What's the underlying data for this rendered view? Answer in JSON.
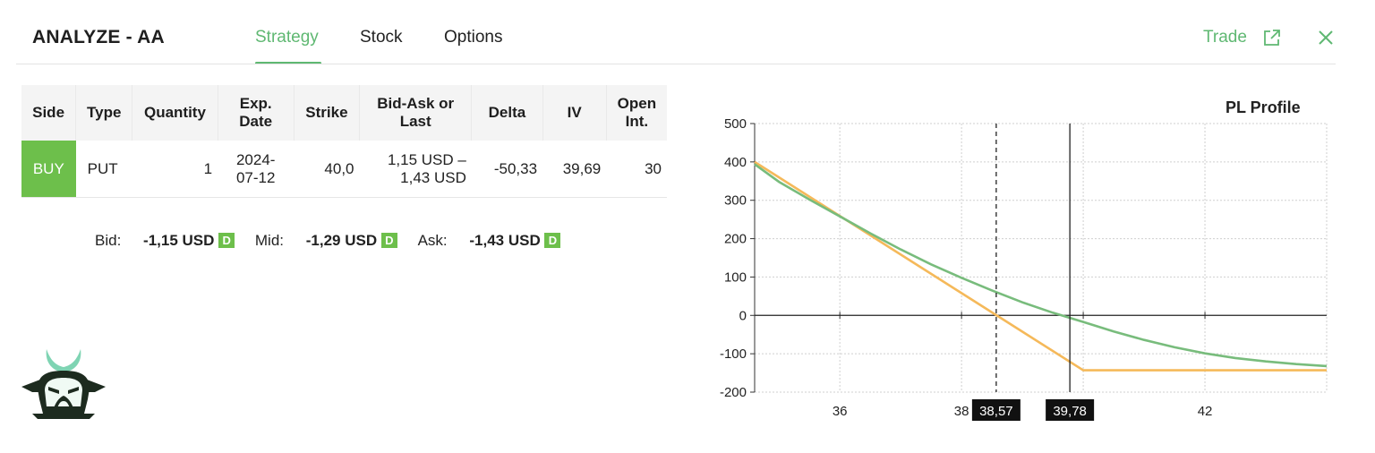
{
  "header": {
    "title": "ANALYZE - AA",
    "tabs": [
      {
        "label": "Strategy",
        "active": true
      },
      {
        "label": "Stock",
        "active": false
      },
      {
        "label": "Options",
        "active": false
      }
    ],
    "trade_label": "Trade",
    "accent_color": "#5fb872"
  },
  "table": {
    "columns": [
      [
        "Side"
      ],
      [
        "Type"
      ],
      [
        "Quantity"
      ],
      [
        "Exp.",
        "Date"
      ],
      [
        "Strike"
      ],
      [
        "Bid-Ask or",
        "Last"
      ],
      [
        "Delta"
      ],
      [
        "IV"
      ],
      [
        "Open",
        "Int."
      ]
    ],
    "rows": [
      {
        "side": "BUY",
        "type": "PUT",
        "quantity": "1",
        "exp_date": [
          "2024-",
          "07-12"
        ],
        "strike": "40,0",
        "bid_ask": [
          "1,15 USD –",
          "1,43 USD"
        ],
        "delta": "-50,33",
        "iv": "39,69",
        "open_int": "30"
      }
    ]
  },
  "prices": {
    "bid_label": "Bid:",
    "bid_value": "-1,15 USD",
    "mid_label": "Mid:",
    "mid_value": "-1,29 USD",
    "ask_label": "Ask:",
    "ask_value": "-1,43 USD",
    "badge": "D"
  },
  "chart_data": {
    "type": "line",
    "title": "PL Profile",
    "xlim": [
      34.6,
      44.0
    ],
    "ylim": [
      -200,
      500
    ],
    "y_ticks": [
      500,
      400,
      300,
      200,
      100,
      0,
      -100,
      -200
    ],
    "x_ticks": [
      36,
      38,
      40,
      42
    ],
    "x_tick_labels_shown": [
      "36",
      "38",
      "42"
    ],
    "markers": [
      {
        "x": 38.57,
        "label": "38,57",
        "style": "dashed"
      },
      {
        "x": 39.78,
        "label": "39,78",
        "style": "solid"
      }
    ],
    "series": [
      {
        "color": "#f5b95a",
        "x": [
          34.6,
          40.0,
          44.0
        ],
        "y": [
          400,
          -143,
          -143
        ]
      },
      {
        "color": "#78bc7c",
        "x": [
          34.6,
          35.0,
          35.5,
          36.0,
          36.5,
          37.0,
          37.5,
          38.0,
          38.5,
          39.0,
          39.5,
          40.0,
          40.5,
          41.0,
          41.5,
          42.0,
          42.5,
          43.0,
          43.5,
          44.0
        ],
        "y": [
          394,
          348,
          302,
          258,
          214,
          172,
          133,
          98,
          65,
          34,
          7,
          -17,
          -42,
          -64,
          -83,
          -99,
          -111,
          -120,
          -127,
          -132
        ]
      }
    ],
    "grid": true
  }
}
